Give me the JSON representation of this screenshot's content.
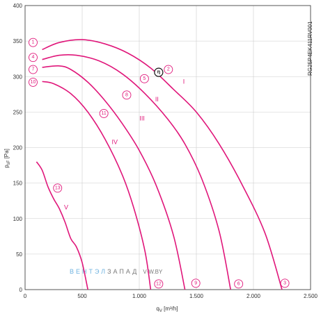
{
  "colors": {
    "curve": "#e0167a",
    "grid": "#cccccc",
    "axis": "#333333",
    "text": "#333333",
    "eta_marker": "#111111",
    "watermark_blue": "#6fb3e0",
    "watermark_gray": "#7a7a7a"
  },
  "chart_data": {
    "type": "line",
    "xlabel": "q_V [m³/h]",
    "ylabel": "p_sF [Pa]",
    "xlim": [
      0,
      2500
    ],
    "ylim": [
      0,
      400
    ],
    "x_ticks": [
      0,
      500,
      1000,
      1500,
      2000,
      2500
    ],
    "x_tick_labels": [
      "0",
      "500",
      "1.000",
      "1.500",
      "2.000",
      "2.500"
    ],
    "y_ticks": [
      0,
      50,
      100,
      150,
      200,
      250,
      300,
      350,
      400
    ],
    "y_tick_labels": [
      "0",
      "50",
      "100",
      "150",
      "200",
      "250",
      "300",
      "350",
      "400"
    ],
    "grid": true,
    "model_code": "RG25P4EK411RV001",
    "series": [
      {
        "name": "I",
        "values": [
          [
            150,
            338
          ],
          [
            300,
            348
          ],
          [
            500,
            352
          ],
          [
            700,
            346
          ],
          [
            900,
            333
          ],
          [
            1100,
            312
          ],
          [
            1300,
            282
          ],
          [
            1500,
            250
          ],
          [
            1700,
            205
          ],
          [
            1900,
            148
          ],
          [
            2100,
            80
          ],
          [
            2250,
            0
          ]
        ]
      },
      {
        "name": "II",
        "values": [
          [
            150,
            324
          ],
          [
            300,
            330
          ],
          [
            450,
            330
          ],
          [
            650,
            322
          ],
          [
            850,
            304
          ],
          [
            1050,
            276
          ],
          [
            1250,
            240
          ],
          [
            1400,
            205
          ],
          [
            1550,
            155
          ],
          [
            1700,
            82
          ],
          [
            1800,
            0
          ]
        ]
      },
      {
        "name": "III",
        "values": [
          [
            150,
            313
          ],
          [
            300,
            315
          ],
          [
            400,
            310
          ],
          [
            550,
            292
          ],
          [
            700,
            266
          ],
          [
            850,
            234
          ],
          [
            1000,
            196
          ],
          [
            1150,
            146
          ],
          [
            1300,
            76
          ],
          [
            1400,
            0
          ]
        ]
      },
      {
        "name": "IV",
        "values": [
          [
            150,
            293
          ],
          [
            250,
            290
          ],
          [
            400,
            276
          ],
          [
            550,
            250
          ],
          [
            700,
            212
          ],
          [
            850,
            162
          ],
          [
            950,
            116
          ],
          [
            1050,
            54
          ],
          [
            1100,
            0
          ]
        ]
      },
      {
        "name": "V",
        "values": [
          [
            100,
            180
          ],
          [
            150,
            168
          ],
          [
            200,
            145
          ],
          [
            250,
            128
          ],
          [
            300,
            114
          ],
          [
            350,
            95
          ],
          [
            400,
            72
          ],
          [
            450,
            60
          ],
          [
            500,
            38
          ],
          [
            550,
            0
          ]
        ]
      }
    ],
    "annotations": {
      "roman_labels": [
        {
          "text": "I",
          "x": 1390,
          "y": 290
        },
        {
          "text": "II",
          "x": 1155,
          "y": 265
        },
        {
          "text": "III",
          "x": 1025,
          "y": 238
        },
        {
          "text": "IV",
          "x": 785,
          "y": 205
        },
        {
          "text": "V",
          "x": 360,
          "y": 113
        }
      ],
      "point_markers": [
        {
          "text": "1",
          "x": 70,
          "y": 348
        },
        {
          "text": "4",
          "x": 70,
          "y": 327
        },
        {
          "text": "7",
          "x": 70,
          "y": 310
        },
        {
          "text": "10",
          "x": 70,
          "y": 292
        },
        {
          "text": "2",
          "x": 1255,
          "y": 310
        },
        {
          "text": "5",
          "x": 1045,
          "y": 297
        },
        {
          "text": "8",
          "x": 890,
          "y": 274
        },
        {
          "text": "11",
          "x": 690,
          "y": 248
        },
        {
          "text": "13",
          "x": 285,
          "y": 143
        },
        {
          "text": "12",
          "x": 1170,
          "y": 8
        },
        {
          "text": "9",
          "x": 1495,
          "y": 9
        },
        {
          "text": "6",
          "x": 1870,
          "y": 8
        },
        {
          "text": "3",
          "x": 2275,
          "y": 9
        }
      ],
      "eta_marker": {
        "text": "η",
        "x": 1170,
        "y": 306
      }
    }
  },
  "watermark": {
    "blue": "ВЕНТЭЛ",
    "gray": "ЗАПАД",
    "suffix": "V·W.BY"
  }
}
